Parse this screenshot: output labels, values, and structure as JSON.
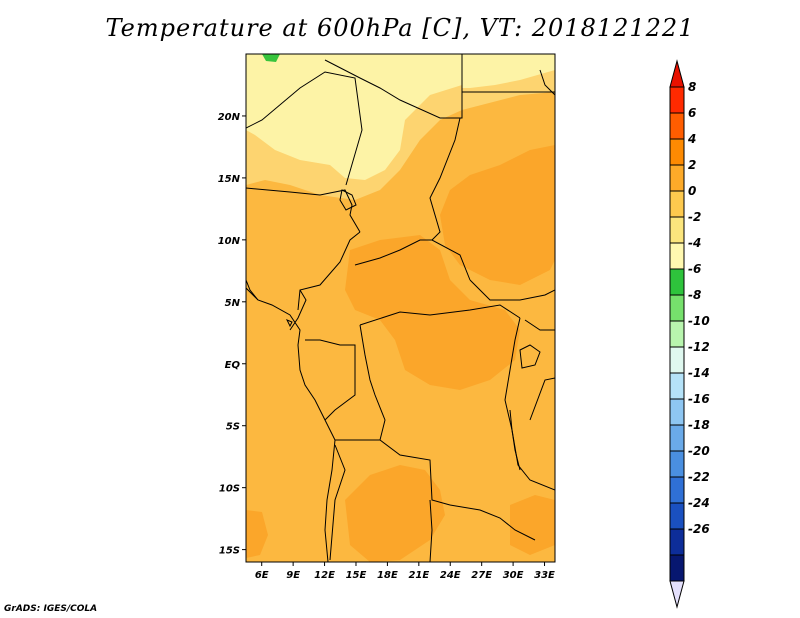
{
  "title": "Temperature at 600hPa [C], VT: 2018121221",
  "credit": "GrADS: IGES/COLA",
  "map": {
    "lon_range": [
      4.5,
      34
    ],
    "lat_range": [
      -16,
      25
    ],
    "lon_ticks": [
      {
        "value": 6,
        "label": "6E"
      },
      {
        "value": 9,
        "label": "9E"
      },
      {
        "value": 12,
        "label": "12E"
      },
      {
        "value": 15,
        "label": "15E"
      },
      {
        "value": 18,
        "label": "18E"
      },
      {
        "value": 21,
        "label": "21E"
      },
      {
        "value": 24,
        "label": "24E"
      },
      {
        "value": 27,
        "label": "27E"
      },
      {
        "value": 30,
        "label": "30E"
      },
      {
        "value": 33,
        "label": "33E"
      }
    ],
    "lat_ticks": [
      {
        "value": 20,
        "label": "20N"
      },
      {
        "value": 15,
        "label": "15N"
      },
      {
        "value": 10,
        "label": "10N"
      },
      {
        "value": 5,
        "label": "5N"
      },
      {
        "value": 0,
        "label": "EQ"
      },
      {
        "value": -5,
        "label": "5S"
      },
      {
        "value": -10,
        "label": "10S"
      },
      {
        "value": -15,
        "label": "15S"
      }
    ],
    "background_color": "#fcb840"
  },
  "colorbar": {
    "levels": [
      "8",
      "6",
      "4",
      "2",
      "0",
      "-2",
      "-4",
      "-6",
      "-8",
      "-10",
      "-12",
      "-14",
      "-16",
      "-18",
      "-20",
      "-22",
      "-24",
      "-26"
    ],
    "colors": [
      "#ff2a00",
      "#ff5d00",
      "#fd8a02",
      "#fdaa29",
      "#fdc94e",
      "#fbe57d",
      "#fff8b0",
      "#2ec33c",
      "#76e06c",
      "#b8f5ae",
      "#dff8ef",
      "#b5e2f8",
      "#8ec6f2",
      "#6aaae9",
      "#4a8fe0",
      "#2f70d6",
      "#1a50c0",
      "#0d2d99",
      "#071770"
    ],
    "top_arrow_color": "#e81100",
    "bottom_arrow_color": "#e4e0fc"
  }
}
